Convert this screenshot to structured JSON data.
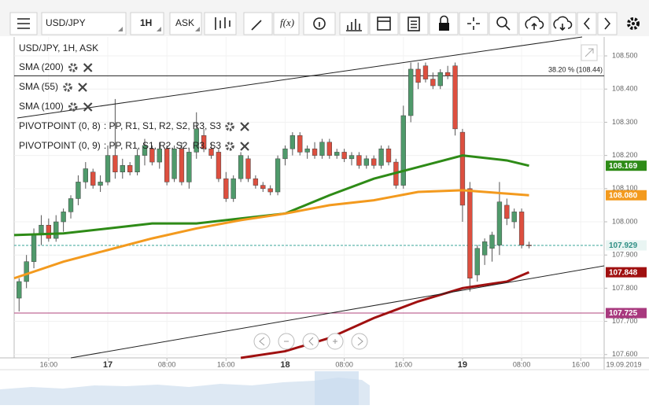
{
  "toolbar": {
    "symbol": "USD/JPY",
    "timeframe": "1H",
    "price_type": "ASK",
    "function_button": "f(x)"
  },
  "chart_data": {
    "type": "candlestick",
    "title": "USD/JPY, 1H, ASK",
    "indicators": [
      {
        "name": "SMA (200)",
        "color": "#a01010"
      },
      {
        "name": "SMA (55)",
        "color": "#2e8b17"
      },
      {
        "name": "SMA (100)",
        "color": "#f39a1e"
      },
      {
        "name": "PIVOTPOINT (0, 8)",
        "color": "#222222"
      },
      {
        "name": "PIVOTPOINT (0, 9)",
        "color": "#222222"
      }
    ],
    "pivot_keys": [
      {
        "text": ": PP,",
        "color": "#c0157f"
      },
      {
        "text": "R1,",
        "color": "#1e8a3c"
      },
      {
        "text": "S1,",
        "color": "#b86b00"
      },
      {
        "text": "R2,",
        "color": "#1d4fa0"
      },
      {
        "text": "S2,",
        "color": "#333333"
      },
      {
        "text": "R3,",
        "color": "#b8651a"
      },
      {
        "text": "S3",
        "color": "#8a1a9a"
      }
    ],
    "xlim": [
      "2019-09-16 11:20",
      "2019-09-19 19:10"
    ],
    "ylim": [
      107.59,
      108.557
    ],
    "grid": true,
    "up_color": "#4f9a6b",
    "down_color": "#dd4f3f",
    "x": [
      "2019-09-16 12:00",
      "2019-09-16 13:00",
      "2019-09-16 14:00",
      "2019-09-16 15:00",
      "2019-09-16 16:00",
      "2019-09-16 17:00",
      "2019-09-16 18:00",
      "2019-09-16 19:00",
      "2019-09-16 20:00",
      "2019-09-16 21:00",
      "2019-09-16 22:00",
      "2019-09-16 23:00",
      "2019-09-17 00:00",
      "2019-09-17 01:00",
      "2019-09-17 02:00",
      "2019-09-17 03:00",
      "2019-09-17 04:00",
      "2019-09-17 05:00",
      "2019-09-17 06:00",
      "2019-09-17 07:00",
      "2019-09-17 08:00",
      "2019-09-17 09:00",
      "2019-09-17 10:00",
      "2019-09-17 11:00",
      "2019-09-17 12:00",
      "2019-09-17 13:00",
      "2019-09-17 14:00",
      "2019-09-17 15:00",
      "2019-09-17 16:00",
      "2019-09-17 17:00",
      "2019-09-17 18:00",
      "2019-09-17 19:00",
      "2019-09-17 20:00",
      "2019-09-17 21:00",
      "2019-09-17 22:00",
      "2019-09-17 23:00",
      "2019-09-18 00:00",
      "2019-09-18 01:00",
      "2019-09-18 02:00",
      "2019-09-18 03:00",
      "2019-09-18 04:00",
      "2019-09-18 05:00",
      "2019-09-18 06:00",
      "2019-09-18 07:00",
      "2019-09-18 08:00",
      "2019-09-18 09:00",
      "2019-09-18 10:00",
      "2019-09-18 11:00",
      "2019-09-18 12:00",
      "2019-09-18 13:00",
      "2019-09-18 14:00",
      "2019-09-18 15:00",
      "2019-09-18 16:00",
      "2019-09-18 17:00",
      "2019-09-18 18:00",
      "2019-09-18 19:00",
      "2019-09-18 20:00",
      "2019-09-18 21:00",
      "2019-09-18 22:00",
      "2019-09-18 23:00",
      "2019-09-19 00:00",
      "2019-09-19 01:00",
      "2019-09-19 02:00",
      "2019-09-19 03:00",
      "2019-09-19 04:00",
      "2019-09-19 05:00",
      "2019-09-19 06:00",
      "2019-09-19 07:00",
      "2019-09-19 08:00",
      "2019-09-19 09:00"
    ],
    "open": [
      107.77,
      107.82,
      107.88,
      107.96,
      107.99,
      107.95,
      108.0,
      108.03,
      108.07,
      108.12,
      108.15,
      108.11,
      108.12,
      108.2,
      108.15,
      108.17,
      108.15,
      108.2,
      108.22,
      108.18,
      108.22,
      108.13,
      108.22,
      108.12,
      108.21,
      108.26,
      108.22,
      108.21,
      108.13,
      108.07,
      108.13,
      108.19,
      108.13,
      108.11,
      108.1,
      108.09,
      108.19,
      108.22,
      108.26,
      108.21,
      108.22,
      108.2,
      108.24,
      108.2,
      108.21,
      108.19,
      108.2,
      108.17,
      108.19,
      108.17,
      108.22,
      108.18,
      108.11,
      108.32,
      108.46,
      108.47,
      108.43,
      108.41,
      108.45,
      108.47,
      108.27,
      108.1,
      107.84,
      107.9,
      107.92,
      107.93,
      108.05,
      108.0,
      108.03,
      107.93
    ],
    "high": [
      107.83,
      107.9,
      107.98,
      108.02,
      108.01,
      108.02,
      108.04,
      108.08,
      108.14,
      108.18,
      108.16,
      108.14,
      108.23,
      108.37,
      108.19,
      108.18,
      108.22,
      108.25,
      108.23,
      108.24,
      108.23,
      108.23,
      108.24,
      108.22,
      108.33,
      108.28,
      108.24,
      108.22,
      108.15,
      108.14,
      108.21,
      108.2,
      108.14,
      108.12,
      108.11,
      108.2,
      108.23,
      108.27,
      108.27,
      108.23,
      108.24,
      108.25,
      108.25,
      108.22,
      108.22,
      108.21,
      108.21,
      108.2,
      108.2,
      108.23,
      108.23,
      108.19,
      108.35,
      108.48,
      108.48,
      108.48,
      108.45,
      108.46,
      108.47,
      108.48,
      108.28,
      108.12,
      107.93,
      107.95,
      107.97,
      108.12,
      108.07,
      108.04,
      108.04,
      107.94
    ],
    "low": [
      107.73,
      107.8,
      107.86,
      107.93,
      107.94,
      107.94,
      107.97,
      108.01,
      108.05,
      108.1,
      108.1,
      108.09,
      108.11,
      108.13,
      108.13,
      108.14,
      108.14,
      108.17,
      108.17,
      108.16,
      108.11,
      108.12,
      108.11,
      108.1,
      108.19,
      108.21,
      108.19,
      108.12,
      108.06,
      108.06,
      108.12,
      108.12,
      108.1,
      108.09,
      108.08,
      108.08,
      108.17,
      108.2,
      108.2,
      108.19,
      108.19,
      108.19,
      108.19,
      108.19,
      108.18,
      108.17,
      108.16,
      108.16,
      108.16,
      108.16,
      108.17,
      108.1,
      108.1,
      108.3,
      108.4,
      108.42,
      108.4,
      108.4,
      108.43,
      108.26,
      108.0,
      107.79,
      107.82,
      107.87,
      107.88,
      107.9,
      107.99,
      107.98,
      107.92,
      107.92
    ],
    "close": [
      107.82,
      107.88,
      107.96,
      107.99,
      107.95,
      108.0,
      108.03,
      108.07,
      108.12,
      108.16,
      108.11,
      108.12,
      108.2,
      108.15,
      108.17,
      108.15,
      108.2,
      108.23,
      108.18,
      108.22,
      108.12,
      108.22,
      108.12,
      108.21,
      108.28,
      108.22,
      108.2,
      108.13,
      108.07,
      108.13,
      108.2,
      108.13,
      108.11,
      108.1,
      108.09,
      108.19,
      108.22,
      108.26,
      108.21,
      108.22,
      108.2,
      108.24,
      108.2,
      108.21,
      108.19,
      108.2,
      108.17,
      108.19,
      108.17,
      108.22,
      108.18,
      108.11,
      108.32,
      108.46,
      108.42,
      108.43,
      108.41,
      108.45,
      108.44,
      108.28,
      108.05,
      107.83,
      107.92,
      107.94,
      107.96,
      108.06,
      108.01,
      108.03,
      107.93,
      107.929
    ],
    "series": [
      {
        "name": "SMA (55)",
        "color": "#2e8b17",
        "x": [
          "2019-09-16 11:20",
          "2019-09-16 18:00",
          "2019-09-17 00:00",
          "2019-09-17 06:00",
          "2019-09-17 12:00",
          "2019-09-17 18:00",
          "2019-09-18 00:00",
          "2019-09-18 06:00",
          "2019-09-18 12:00",
          "2019-09-18 18:00",
          "2019-09-19 00:00",
          "2019-09-19 06:00",
          "2019-09-19 09:00"
        ],
        "values": [
          107.96,
          107.965,
          107.98,
          107.995,
          107.995,
          108.01,
          108.025,
          108.08,
          108.13,
          108.165,
          108.2,
          108.185,
          108.169
        ]
      },
      {
        "name": "SMA (100)",
        "color": "#f39a1e",
        "x": [
          "2019-09-16 11:20",
          "2019-09-16 18:00",
          "2019-09-17 00:00",
          "2019-09-17 06:00",
          "2019-09-17 12:00",
          "2019-09-17 18:00",
          "2019-09-18 00:00",
          "2019-09-18 06:00",
          "2019-09-18 12:00",
          "2019-09-18 18:00",
          "2019-09-19 00:00",
          "2019-09-19 06:00",
          "2019-09-19 09:00"
        ],
        "values": [
          107.83,
          107.88,
          107.915,
          107.95,
          107.98,
          108.005,
          108.025,
          108.05,
          108.065,
          108.09,
          108.095,
          108.085,
          108.08
        ]
      },
      {
        "name": "SMA (200)",
        "color": "#a01010",
        "x": [
          "2019-09-17 18:00",
          "2019-09-18 00:00",
          "2019-09-18 06:00",
          "2019-09-18 12:00",
          "2019-09-18 18:00",
          "2019-09-19 00:00",
          "2019-09-19 06:00",
          "2019-09-19 09:00"
        ],
        "values": [
          107.59,
          107.61,
          107.65,
          107.71,
          107.76,
          107.8,
          107.82,
          107.848
        ]
      }
    ],
    "hlines": [
      {
        "value": 108.44,
        "color": "#222222",
        "label": "38.20 % (108.44)"
      },
      {
        "value": 107.929,
        "color": "#3aa59a",
        "dashed": true
      },
      {
        "value": 107.725,
        "color": "#b0447e"
      }
    ],
    "price_labels": [
      {
        "value": 108.169,
        "label": "108.169",
        "fill": "#2e8b17",
        "text_color": "#ffffff"
      },
      {
        "value": 108.08,
        "label": "108.080",
        "fill": "#f39a1e",
        "text_color": "#ffffff"
      },
      {
        "value": 107.929,
        "label": "107.929",
        "fill": "#e9f5f3",
        "text_color": "#2f8f85"
      },
      {
        "value": 107.848,
        "label": "107.848",
        "fill": "#a01010",
        "text_color": "#ffffff"
      },
      {
        "value": 107.725,
        "label": "107.725",
        "fill": "#a8397e",
        "text_color": "#ffffff"
      }
    ],
    "yticks": [
      {
        "value": 107.6,
        "label": "107.600"
      },
      {
        "value": 107.7,
        "label": "107.700"
      },
      {
        "value": 107.8,
        "label": "107.800"
      },
      {
        "value": 107.9,
        "label": "107.900"
      },
      {
        "value": 108,
        "label": "108.000"
      },
      {
        "value": 108.1,
        "label": "108.100"
      },
      {
        "value": 108.2,
        "label": "108.200"
      },
      {
        "value": 108.3,
        "label": "108.300"
      },
      {
        "value": 108.4,
        "label": "108.400"
      },
      {
        "value": 108.5,
        "label": "108.500"
      }
    ],
    "xticks": [
      {
        "value": "2019-09-16 16:00",
        "label": "16:00"
      },
      {
        "value": "2019-09-17 00:00",
        "label": "17"
      },
      {
        "value": "2019-09-17 08:00",
        "label": "08:00"
      },
      {
        "value": "2019-09-17 16:00",
        "label": "16:00"
      },
      {
        "value": "2019-09-18 00:00",
        "label": "18"
      },
      {
        "value": "2019-09-18 08:00",
        "label": "08:00"
      },
      {
        "value": "2019-09-18 16:00",
        "label": "16:00"
      },
      {
        "value": "2019-09-19 00:00",
        "label": "19"
      },
      {
        "value": "2019-09-19 08:00",
        "label": "08:00"
      },
      {
        "value": "2019-09-19 16:00",
        "label": "16:00"
      }
    ],
    "date_label": "19.09.2019"
  }
}
